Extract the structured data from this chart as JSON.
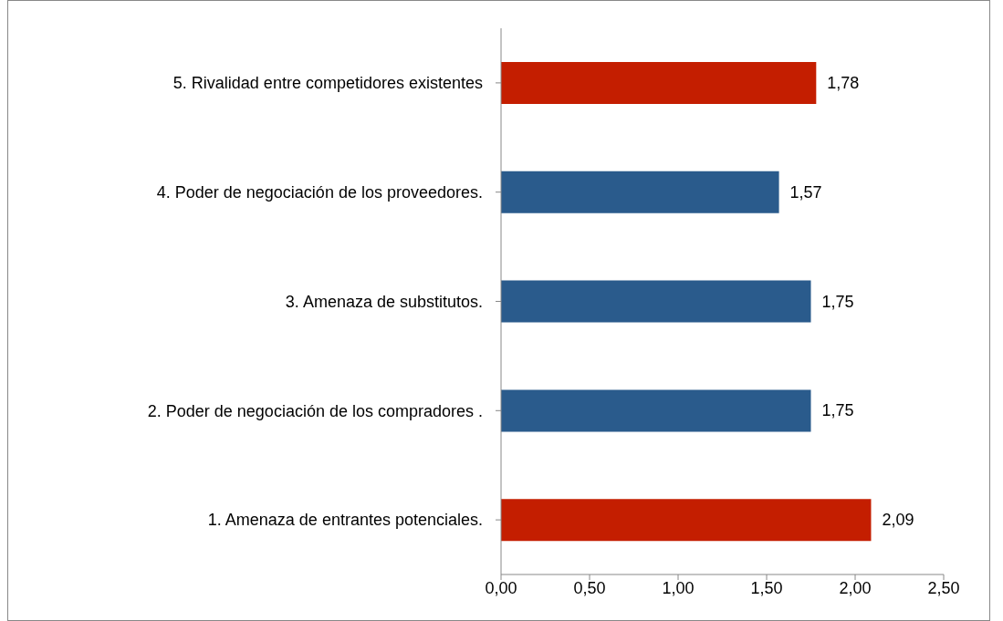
{
  "chart_data": {
    "type": "bar",
    "orientation": "horizontal",
    "categories": [
      "5. Rivalidad entre competidores existentes",
      "4. Poder de negociación de los proveedores.",
      "3. Amenaza de substitutos.",
      "2. Poder de negociación de los compradores .",
      "1. Amenaza de entrantes potenciales."
    ],
    "values": [
      1.78,
      1.57,
      1.75,
      1.75,
      2.09
    ],
    "colors": [
      "#c41e00",
      "#2a5b8c",
      "#2a5b8c",
      "#2a5b8c",
      "#c41e00"
    ],
    "value_labels": [
      "1,78",
      "1,57",
      "1,75",
      "1,75",
      "2,09"
    ],
    "xlim": [
      0,
      2.5
    ],
    "xticks": [
      {
        "value": 0,
        "label": "0,00"
      },
      {
        "value": 0.5,
        "label": "0,50"
      },
      {
        "value": 1,
        "label": "1,00"
      },
      {
        "value": 1.5,
        "label": "1,50"
      },
      {
        "value": 2,
        "label": "2,00"
      },
      {
        "value": 2.5,
        "label": "2,50"
      }
    ],
    "grid": false,
    "legend": false
  }
}
